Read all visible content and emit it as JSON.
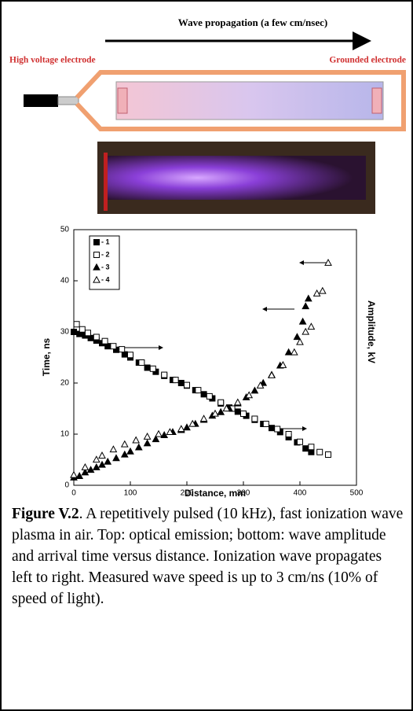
{
  "diagram": {
    "title": "Wave propagation (a few cm/nsec)",
    "left_label": "High voltage electrode",
    "right_label": "Grounded electrode"
  },
  "chart_data": {
    "type": "scatter",
    "xlabel": "Distance, mm",
    "ylabel": "Time, ns",
    "y2label": "Amplitude, kV",
    "xlim": [
      0,
      500
    ],
    "xticks": [
      0,
      100,
      200,
      300,
      400,
      500
    ],
    "ylim": [
      0,
      50
    ],
    "yticks": [
      0,
      10,
      20,
      30,
      40,
      50
    ],
    "series": [
      {
        "name": "- 1",
        "marker": "filled-square",
        "color": "#000000",
        "x": [
          0,
          10,
          20,
          30,
          40,
          50,
          60,
          75,
          90,
          100,
          115,
          130,
          145,
          160,
          175,
          190,
          200,
          215,
          230,
          245,
          260,
          275,
          290,
          305,
          320,
          335,
          350,
          365,
          380,
          395,
          410,
          420
        ],
        "values": [
          30,
          29.6,
          29.3,
          28.8,
          28.3,
          27.8,
          27.2,
          26.5,
          25.6,
          25,
          24,
          23,
          22.2,
          21.4,
          20.6,
          20,
          19.5,
          18.6,
          17.8,
          17,
          16,
          15.2,
          14.4,
          13.6,
          12.8,
          12,
          11.2,
          10.4,
          9.4,
          8.4,
          7.2,
          6.5
        ]
      },
      {
        "name": "- 2",
        "marker": "open-square",
        "color": "#000000",
        "x": [
          5,
          15,
          25,
          40,
          55,
          70,
          85,
          100,
          120,
          140,
          160,
          180,
          200,
          220,
          240,
          260,
          280,
          300,
          320,
          340,
          360,
          380,
          400,
          420,
          435,
          450
        ],
        "values": [
          31.5,
          30.5,
          29.8,
          29,
          28.2,
          27.2,
          26.6,
          25.5,
          24,
          22.8,
          21.6,
          20.6,
          19.6,
          18.6,
          17.4,
          16.2,
          15,
          14,
          13,
          12,
          11,
          10,
          8.5,
          7.5,
          6.5,
          6
        ]
      },
      {
        "name": "- 3",
        "marker": "filled-triangle",
        "color": "#000000",
        "x": [
          0,
          10,
          20,
          30,
          40,
          50,
          60,
          75,
          90,
          100,
          115,
          130,
          145,
          160,
          175,
          190,
          200,
          215,
          230,
          245,
          260,
          275,
          290,
          305,
          320,
          335,
          350,
          365,
          380,
          395,
          405,
          410,
          415
        ],
        "values": [
          1.5,
          1.8,
          2.5,
          3,
          3.5,
          4,
          4.6,
          5.3,
          6,
          6.6,
          7.4,
          8.2,
          9,
          9.8,
          10.4,
          10.8,
          11.3,
          12,
          12.8,
          13.6,
          14.3,
          15,
          16,
          17.2,
          18.5,
          20,
          21.6,
          23.4,
          26,
          29,
          32,
          35,
          36.5
        ]
      },
      {
        "name": "- 4",
        "marker": "open-triangle",
        "color": "#000000",
        "x": [
          0,
          20,
          40,
          50,
          70,
          90,
          110,
          130,
          150,
          170,
          190,
          210,
          230,
          250,
          270,
          290,
          310,
          330,
          350,
          370,
          390,
          400,
          410,
          420,
          430,
          440,
          450
        ],
        "values": [
          2,
          3.5,
          5,
          5.8,
          7,
          8,
          8.8,
          9.5,
          10,
          10.4,
          11,
          12,
          13,
          14,
          15,
          16.2,
          17.6,
          19.5,
          21.5,
          23.5,
          26,
          28,
          30,
          31,
          37.5,
          38,
          43.5
        ]
      }
    ]
  },
  "caption": {
    "label": "Figure V.2",
    "text": ". A repetitively pulsed (10 kHz), fast ionization wave plasma in air.  Top: optical emission; bottom: wave amplitude and arrival time versus distance.  Ionization wave propagates left to right.  Measured wave speed is up to 3 cm/ns (10% of speed of light)."
  }
}
